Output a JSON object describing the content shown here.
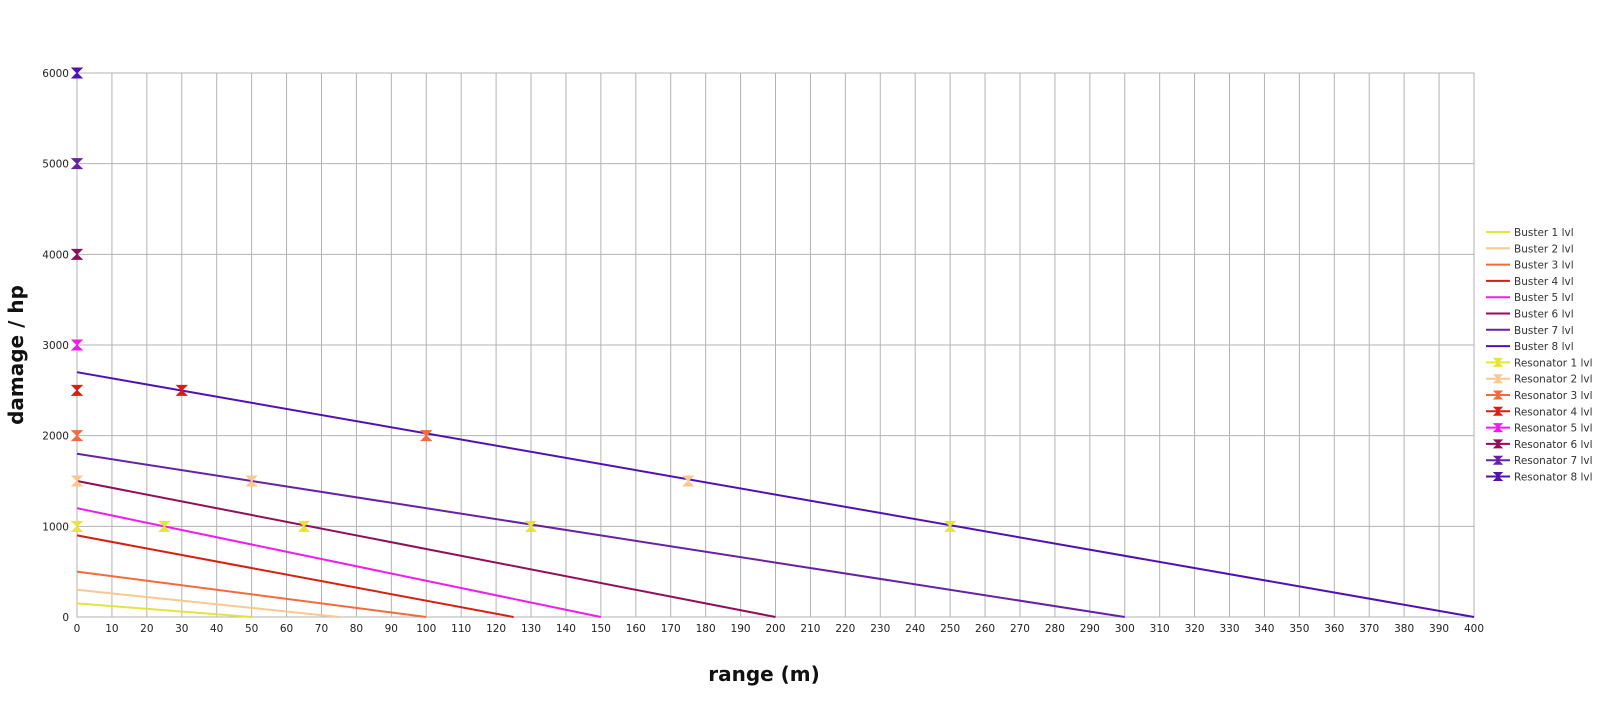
{
  "chart_data": {
    "type": "line",
    "xlabel": "range (m)",
    "ylabel": "damage / hp",
    "xlim": [
      0,
      400
    ],
    "ylim": [
      0,
      6000
    ],
    "x_ticks": [
      0,
      10,
      20,
      30,
      40,
      50,
      60,
      70,
      80,
      90,
      100,
      110,
      120,
      130,
      140,
      150,
      160,
      170,
      180,
      190,
      200,
      210,
      220,
      230,
      240,
      250,
      260,
      270,
      280,
      290,
      300,
      310,
      320,
      330,
      340,
      350,
      360,
      370,
      380,
      390,
      400
    ],
    "y_ticks": [
      0,
      1000,
      2000,
      3000,
      4000,
      5000,
      6000
    ],
    "grid": true,
    "legend_position": "right",
    "series": [
      {
        "name": "Buster 1 lvl",
        "color": "#e4e43c",
        "kind": "line",
        "points": [
          [
            0,
            150
          ],
          [
            50,
            0
          ]
        ]
      },
      {
        "name": "Buster 2 lvl",
        "color": "#f8c890",
        "kind": "line",
        "points": [
          [
            0,
            300
          ],
          [
            75,
            0
          ]
        ]
      },
      {
        "name": "Buster 3 lvl",
        "color": "#f46a3a",
        "kind": "line",
        "points": [
          [
            0,
            500
          ],
          [
            100,
            0
          ]
        ]
      },
      {
        "name": "Buster 4 lvl",
        "color": "#d81e10",
        "kind": "line",
        "points": [
          [
            0,
            900
          ],
          [
            125,
            0
          ]
        ]
      },
      {
        "name": "Buster 5 lvl",
        "color": "#f01cec",
        "kind": "line",
        "points": [
          [
            0,
            1200
          ],
          [
            150,
            0
          ]
        ]
      },
      {
        "name": "Buster 6 lvl",
        "color": "#900e5a",
        "kind": "line",
        "points": [
          [
            0,
            1500
          ],
          [
            200,
            0
          ]
        ]
      },
      {
        "name": "Buster 7 lvl",
        "color": "#6820a4",
        "kind": "line",
        "points": [
          [
            0,
            1800
          ],
          [
            300,
            0
          ]
        ]
      },
      {
        "name": "Buster 8 lvl",
        "color": "#5010b4",
        "kind": "line",
        "points": [
          [
            0,
            2700
          ],
          [
            400,
            0
          ]
        ]
      },
      {
        "name": "Resonator 1 lvl",
        "color": "#e4e43c",
        "kind": "marker",
        "points": [
          [
            0,
            1000
          ],
          [
            25,
            1000
          ],
          [
            65,
            1000
          ],
          [
            130,
            1000
          ],
          [
            250,
            1000
          ]
        ]
      },
      {
        "name": "Resonator 2 lvl",
        "color": "#f8c890",
        "kind": "marker",
        "points": [
          [
            0,
            1500
          ],
          [
            50,
            1500
          ],
          [
            175,
            1500
          ]
        ]
      },
      {
        "name": "Resonator 3 lvl",
        "color": "#f46a3a",
        "kind": "marker",
        "points": [
          [
            0,
            2000
          ],
          [
            100,
            2000
          ]
        ]
      },
      {
        "name": "Resonator 4 lvl",
        "color": "#d81e10",
        "kind": "marker",
        "points": [
          [
            0,
            2500
          ],
          [
            30,
            2500
          ]
        ]
      },
      {
        "name": "Resonator 5 lvl",
        "color": "#f01cec",
        "kind": "marker",
        "points": [
          [
            0,
            3000
          ]
        ]
      },
      {
        "name": "Resonator 6 lvl",
        "color": "#900e5a",
        "kind": "marker",
        "points": [
          [
            0,
            4000
          ]
        ]
      },
      {
        "name": "Resonator 7 lvl",
        "color": "#6820a4",
        "kind": "marker",
        "points": [
          [
            0,
            5000
          ]
        ]
      },
      {
        "name": "Resonator 8 lvl",
        "color": "#5010b4",
        "kind": "marker",
        "points": [
          [
            0,
            6000
          ]
        ]
      }
    ]
  }
}
